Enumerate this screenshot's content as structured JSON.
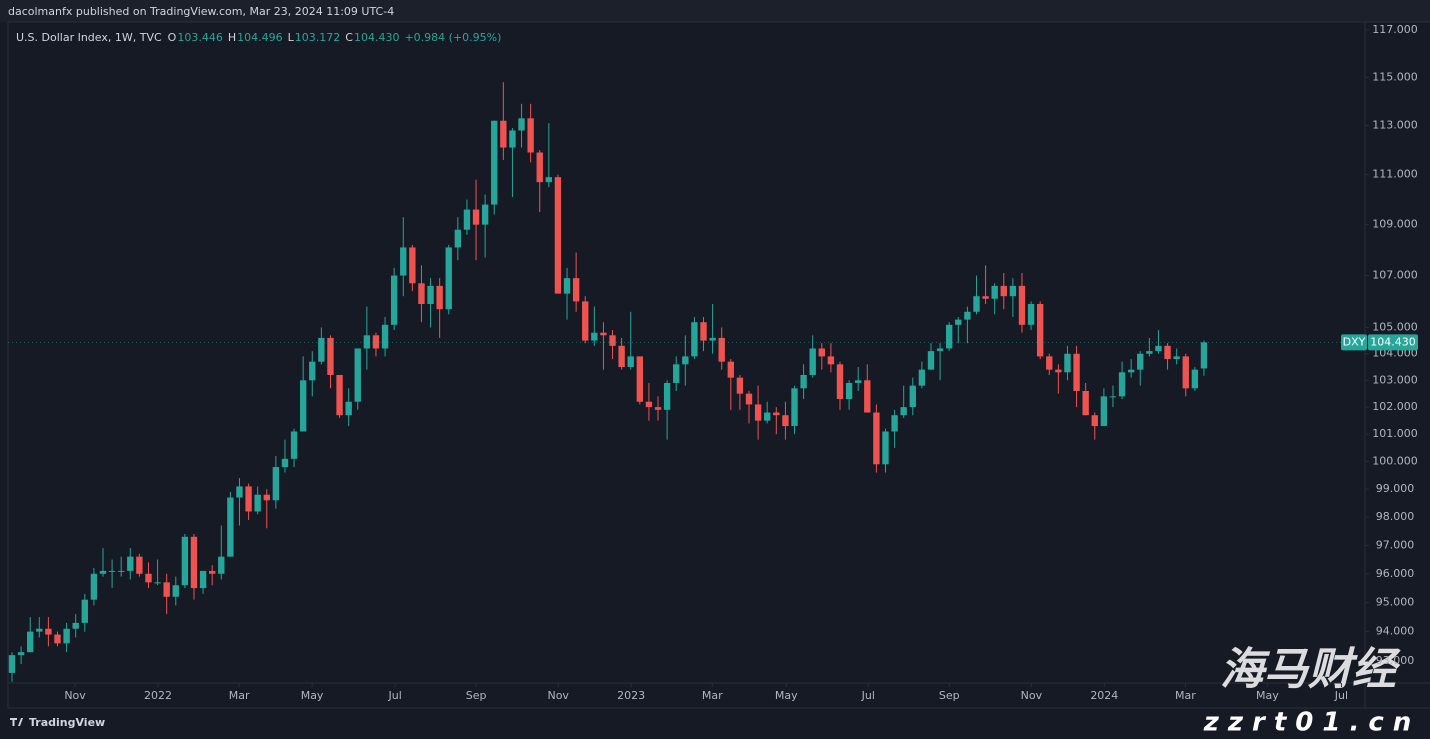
{
  "header": "dacolmanfx published on TradingView.com, Mar 23, 2024 11:09 UTC-4",
  "legend": {
    "title": "U.S. Dollar Index, 1W, TVC",
    "items": [
      {
        "key": "O",
        "text": "103.446"
      },
      {
        "key": "H",
        "text": "104.496"
      },
      {
        "key": "L",
        "text": "103.172"
      },
      {
        "key": "C",
        "text": "104.430"
      }
    ],
    "change": "+0.984 (+0.95%)"
  },
  "footer": "TradingView",
  "watermark": {
    "name": "海马财经",
    "url": "zzrt01.cn"
  },
  "chart_data": {
    "type": "candlestick",
    "log_scale": true,
    "grid": false,
    "up_color": "#26a69a",
    "down_color": "#ef5350",
    "symbol_tag": "DXY",
    "last_price": {
      "value": 104.43,
      "label": "104.430"
    },
    "xlim": [
      -0.44,
      148.7
    ],
    "xticks": [
      {
        "value": 6.93,
        "label": "Nov"
      },
      {
        "value": 16.05,
        "label": "2022"
      },
      {
        "value": 24.96,
        "label": "Mar"
      },
      {
        "value": 32.98,
        "label": "May"
      },
      {
        "value": 42.11,
        "label": "Jul"
      },
      {
        "value": 51.01,
        "label": "Sep"
      },
      {
        "value": 60.03,
        "label": "Nov"
      },
      {
        "value": 68.05,
        "label": "2023"
      },
      {
        "value": 76.96,
        "label": "Mar"
      },
      {
        "value": 85.09,
        "label": "May"
      },
      {
        "value": 94.11,
        "label": "Jul"
      },
      {
        "value": 103.01,
        "label": "Sep"
      },
      {
        "value": 112.03,
        "label": "Nov"
      },
      {
        "value": 120.05,
        "label": "2024"
      },
      {
        "value": 128.96,
        "label": "Mar"
      },
      {
        "value": 137.97,
        "label": "May"
      },
      {
        "value": 146.11,
        "label": "Jul"
      }
    ],
    "ylim": [
      92.26,
      117.34
    ],
    "yticks": [
      {
        "value": 117,
        "label": "117.000"
      },
      {
        "value": 115,
        "label": "115.000"
      },
      {
        "value": 113,
        "label": "113.000"
      },
      {
        "value": 111,
        "label": "111.000"
      },
      {
        "value": 109,
        "label": "109.000"
      },
      {
        "value": 107,
        "label": "107.000"
      },
      {
        "value": 105,
        "label": "105.000"
      },
      {
        "value": 104,
        "label": "104.000"
      },
      {
        "value": 103,
        "label": "103.000"
      },
      {
        "value": 102,
        "label": "102.000"
      },
      {
        "value": 101,
        "label": "101.000"
      },
      {
        "value": 100,
        "label": "100.000"
      },
      {
        "value": 99,
        "label": "99.000"
      },
      {
        "value": 98,
        "label": "98.000"
      },
      {
        "value": 97,
        "label": "97.000"
      },
      {
        "value": 96,
        "label": "96.000"
      },
      {
        "value": 95,
        "label": "95.000"
      },
      {
        "value": 94,
        "label": "94.000"
      },
      {
        "value": 93,
        "label": "93.000"
      }
    ],
    "open": [
      92.6,
      93.2,
      93.3,
      94.0,
      94.1,
      93.9,
      93.6,
      94.1,
      94.3,
      95.1,
      96.0,
      96.1,
      96.1,
      96.1,
      96.6,
      96.0,
      95.7,
      95.7,
      95.2,
      95.6,
      97.3,
      95.5,
      96.1,
      96.0,
      96.6,
      98.7,
      99.1,
      98.2,
      98.8,
      98.6,
      99.8,
      100.1,
      101.1,
      103.0,
      103.7,
      104.6,
      103.2,
      101.7,
      102.2,
      104.2,
      104.7,
      104.2,
      105.1,
      107.0,
      108.1,
      106.7,
      105.9,
      106.6,
      105.7,
      108.1,
      108.8,
      109.6,
      109.0,
      109.8,
      113.2,
      112.1,
      112.8,
      113.3,
      111.9,
      110.7,
      110.9,
      106.3,
      106.9,
      106.0,
      104.5,
      104.8,
      104.7,
      104.3,
      103.5,
      103.9,
      102.2,
      102.0,
      101.9,
      102.9,
      103.6,
      103.9,
      105.2,
      104.5,
      104.6,
      103.7,
      103.1,
      102.5,
      102.1,
      101.5,
      101.8,
      101.7,
      101.3,
      102.7,
      103.2,
      104.2,
      103.9,
      103.6,
      102.3,
      102.9,
      103.0,
      101.8,
      99.9,
      101.1,
      101.7,
      102.0,
      102.8,
      103.4,
      104.1,
      104.2,
      105.1,
      105.3,
      105.6,
      106.2,
      106.1,
      106.6,
      106.2,
      106.6,
      105.1,
      105.9,
      103.9,
      103.4,
      103.3,
      104.0,
      102.6,
      101.7,
      101.3,
      102.4,
      102.4,
      103.3,
      103.4,
      104.0,
      104.1,
      104.3,
      103.8,
      103.9,
      102.7,
      103.446
    ],
    "high": [
      93.3,
      93.5,
      94.5,
      94.5,
      94.5,
      94.0,
      94.3,
      94.6,
      95.3,
      96.2,
      96.9,
      96.5,
      96.6,
      96.9,
      96.7,
      96.4,
      96.5,
      96.0,
      95.9,
      97.4,
      97.4,
      96.1,
      96.3,
      97.7,
      98.9,
      99.4,
      99.2,
      99.1,
      99.0,
      100.2,
      100.8,
      101.2,
      103.9,
      104.1,
      105.0,
      104.7,
      103.2,
      102.7,
      104.2,
      105.8,
      104.8,
      105.4,
      107.3,
      109.3,
      108.2,
      107.4,
      106.9,
      106.9,
      108.2,
      109.3,
      110.0,
      110.8,
      110.2,
      113.2,
      114.8,
      112.9,
      113.9,
      113.9,
      112.0,
      113.1,
      111.0,
      107.3,
      107.9,
      106.2,
      105.8,
      105.2,
      104.9,
      104.6,
      105.6,
      103.9,
      102.9,
      102.4,
      103.0,
      103.9,
      104.7,
      105.4,
      105.4,
      105.9,
      105.0,
      103.8,
      103.2,
      102.6,
      102.8,
      102.2,
      102.0,
      102.2,
      102.8,
      103.6,
      104.7,
      104.4,
      104.4,
      103.7,
      103.0,
      103.5,
      103.6,
      102.1,
      101.2,
      101.9,
      102.8,
      103.1,
      103.7,
      104.4,
      104.4,
      105.2,
      105.4,
      105.8,
      107.0,
      107.4,
      106.7,
      107.1,
      106.9,
      107.1,
      106.0,
      106.0,
      104.0,
      103.6,
      104.3,
      104.3,
      102.9,
      101.8,
      102.7,
      102.8,
      103.7,
      103.8,
      104.1,
      104.6,
      104.9,
      104.4,
      104.2,
      104.0,
      103.5,
      104.496
    ],
    "low": [
      92.3,
      92.9,
      93.3,
      93.8,
      93.5,
      93.5,
      93.3,
      93.8,
      94.0,
      94.9,
      95.9,
      95.5,
      95.9,
      95.8,
      95.9,
      95.5,
      95.6,
      94.6,
      94.9,
      95.5,
      95.1,
      95.3,
      95.6,
      95.8,
      96.6,
      97.7,
      97.9,
      98.1,
      97.6,
      98.3,
      99.6,
      99.8,
      101.1,
      102.4,
      103.6,
      102.7,
      101.6,
      101.3,
      101.9,
      103.4,
      103.9,
      103.9,
      104.9,
      106.2,
      106.4,
      105.2,
      105.0,
      104.6,
      105.5,
      107.6,
      108.6,
      107.6,
      107.7,
      109.4,
      111.6,
      110.1,
      112.1,
      111.5,
      109.5,
      110.5,
      106.3,
      105.3,
      105.6,
      104.4,
      104.3,
      103.4,
      103.8,
      103.4,
      103.4,
      102.1,
      101.5,
      101.5,
      100.8,
      102.6,
      102.8,
      103.8,
      104.1,
      104.0,
      103.4,
      101.9,
      101.9,
      101.4,
      100.8,
      101.4,
      101.0,
      100.8,
      101.0,
      102.3,
      103.1,
      103.4,
      103.3,
      101.9,
      101.9,
      102.6,
      101.8,
      99.6,
      99.6,
      100.5,
      101.6,
      101.7,
      102.7,
      103.4,
      103.0,
      104.1,
      104.4,
      104.4,
      105.5,
      105.9,
      105.5,
      105.7,
      105.4,
      104.8,
      104.9,
      103.8,
      103.2,
      102.5,
      103.0,
      102.0,
      101.7,
      100.8,
      101.3,
      102.0,
      102.3,
      103.1,
      102.8,
      103.9,
      104.0,
      103.4,
      103.6,
      102.4,
      102.6,
      103.172
    ],
    "close": [
      93.2,
      93.3,
      94.0,
      94.1,
      93.9,
      93.6,
      94.1,
      94.3,
      95.1,
      96.0,
      96.1,
      96.1,
      96.1,
      96.6,
      96.0,
      95.7,
      95.7,
      95.2,
      95.6,
      97.3,
      95.5,
      96.1,
      96.0,
      96.6,
      98.7,
      99.1,
      98.2,
      98.8,
      98.6,
      99.8,
      100.1,
      101.1,
      103.0,
      103.7,
      104.6,
      103.2,
      101.7,
      102.2,
      104.2,
      104.7,
      104.2,
      105.1,
      107.0,
      108.1,
      106.7,
      105.9,
      106.6,
      105.7,
      108.1,
      108.8,
      109.6,
      109.0,
      109.8,
      113.2,
      112.1,
      112.8,
      113.3,
      111.9,
      110.7,
      110.9,
      106.3,
      106.9,
      106.0,
      104.5,
      104.8,
      104.7,
      104.3,
      103.5,
      103.9,
      102.2,
      102.0,
      101.9,
      102.9,
      103.6,
      103.9,
      105.2,
      104.5,
      104.6,
      103.7,
      103.1,
      102.5,
      102.1,
      101.5,
      101.8,
      101.7,
      101.3,
      102.7,
      103.2,
      104.2,
      103.9,
      103.6,
      102.3,
      102.9,
      103.0,
      101.8,
      99.9,
      101.1,
      101.7,
      102.0,
      102.8,
      103.4,
      104.1,
      104.2,
      105.1,
      105.3,
      105.6,
      106.2,
      106.1,
      106.6,
      106.2,
      106.6,
      105.1,
      105.9,
      103.9,
      103.4,
      103.3,
      104.0,
      102.6,
      101.7,
      101.3,
      102.4,
      102.4,
      103.3,
      103.4,
      104.0,
      104.1,
      104.3,
      103.8,
      103.9,
      102.7,
      103.4,
      104.43
    ]
  }
}
